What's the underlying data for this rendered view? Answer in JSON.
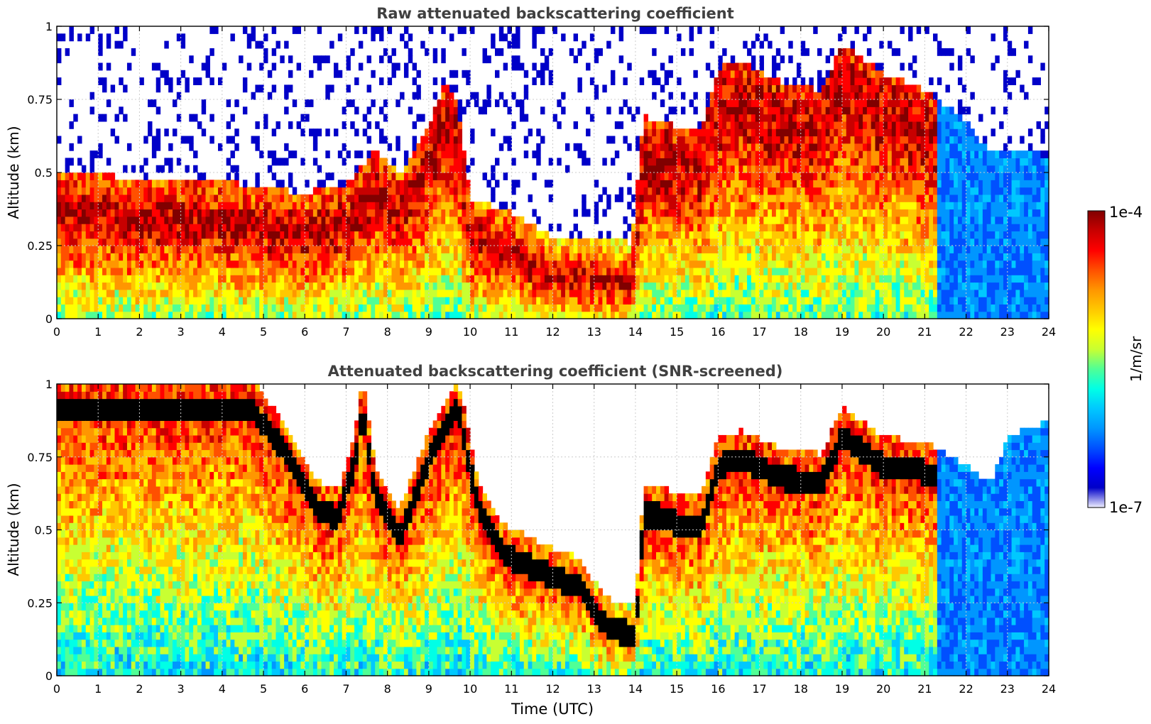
{
  "colors": {
    "jet": [
      "#f0f0ff",
      "#0000c8",
      "#0000ff",
      "#0050ff",
      "#0096ff",
      "#00c8ff",
      "#00ffe6",
      "#50ff96",
      "#c8ff32",
      "#ffff00",
      "#ffc800",
      "#ff9600",
      "#ff5000",
      "#ff0000",
      "#c80000",
      "#800000"
    ],
    "axis": "#000000",
    "grid": "#cccccc",
    "title": "#404040"
  },
  "colorbar": {
    "label": "1/m/sr",
    "max_label": "1e-4",
    "min_label": "1e-7",
    "scale": "log",
    "range": [
      1e-07,
      0.0001
    ]
  },
  "chart_data": [
    {
      "type": "heatmap",
      "title": "Raw attenuated backscattering coefficient",
      "xlabel": "",
      "ylabel": "Altitude (km)",
      "xlim": [
        0,
        24
      ],
      "ylim": [
        0,
        1
      ],
      "xticks": [
        0,
        1,
        2,
        3,
        4,
        5,
        6,
        7,
        8,
        9,
        10,
        11,
        12,
        13,
        14,
        15,
        16,
        17,
        18,
        19,
        20,
        21,
        22,
        23,
        24
      ],
      "yticks": [
        0,
        0.25,
        0.5,
        0.75,
        1
      ],
      "ytick_labels": [
        "0",
        "0.25",
        "0.5",
        "0.75",
        "1"
      ],
      "grid": true,
      "screened": false,
      "layer_top_km": [
        [
          0,
          0.45
        ],
        [
          1,
          0.44
        ],
        [
          2,
          0.41
        ],
        [
          3,
          0.42
        ],
        [
          4,
          0.41
        ],
        [
          5,
          0.39
        ],
        [
          6,
          0.37
        ],
        [
          7,
          0.4
        ],
        [
          7.7,
          0.52
        ],
        [
          8.3,
          0.43
        ],
        [
          9.0,
          0.6
        ],
        [
          9.4,
          0.75
        ],
        [
          9.7,
          0.68
        ],
        [
          10.0,
          0.35
        ],
        [
          11.0,
          0.3
        ],
        [
          12.0,
          0.22
        ],
        [
          13.0,
          0.22
        ],
        [
          13.9,
          0.2
        ],
        [
          14.2,
          0.63
        ],
        [
          15.0,
          0.6
        ],
        [
          15.6,
          0.6
        ],
        [
          16.0,
          0.8
        ],
        [
          16.6,
          0.82
        ],
        [
          17.5,
          0.75
        ],
        [
          18.5,
          0.72
        ],
        [
          19.0,
          0.88
        ],
        [
          20.0,
          0.78
        ],
        [
          21.0,
          0.72
        ],
        [
          22.0,
          0.62
        ],
        [
          22.5,
          0.52
        ],
        [
          24,
          0.5
        ]
      ]
    },
    {
      "type": "heatmap",
      "title": "Attenuated backscattering coefficient (SNR-screened)",
      "xlabel": "Time (UTC)",
      "ylabel": "Altitude (km)",
      "xlim": [
        0,
        24
      ],
      "ylim": [
        0,
        1
      ],
      "xticks": [
        0,
        1,
        2,
        3,
        4,
        5,
        6,
        7,
        8,
        9,
        10,
        11,
        12,
        13,
        14,
        15,
        16,
        17,
        18,
        19,
        20,
        21,
        22,
        23,
        24
      ],
      "yticks": [
        0,
        0.25,
        0.5,
        0.75,
        1
      ],
      "ytick_labels": [
        "0",
        "0.25",
        "0.5",
        "0.75",
        "1"
      ],
      "grid": true,
      "screened": true,
      "signal_top_km": [
        [
          0,
          1.0
        ],
        [
          4.5,
          1.0
        ],
        [
          4.8,
          0.98
        ],
        [
          5.5,
          0.85
        ],
        [
          6.3,
          0.65
        ],
        [
          6.8,
          0.62
        ],
        [
          7.2,
          0.8
        ],
        [
          7.4,
          1.0
        ],
        [
          7.7,
          0.7
        ],
        [
          8.3,
          0.55
        ],
        [
          9.0,
          0.82
        ],
        [
          9.7,
          1.0
        ],
        [
          10.2,
          0.65
        ],
        [
          10.8,
          0.5
        ],
        [
          11.5,
          0.45
        ],
        [
          12.0,
          0.42
        ],
        [
          12.7,
          0.38
        ],
        [
          13.0,
          0.3
        ],
        [
          13.4,
          0.24
        ],
        [
          14.0,
          0.22
        ],
        [
          14.2,
          0.63
        ],
        [
          14.6,
          0.63
        ],
        [
          15.0,
          0.6
        ],
        [
          15.6,
          0.6
        ],
        [
          16.0,
          0.8
        ],
        [
          16.6,
          0.82
        ],
        [
          17.5,
          0.76
        ],
        [
          18.5,
          0.74
        ],
        [
          19.0,
          0.9
        ],
        [
          20.0,
          0.8
        ],
        [
          21.0,
          0.78
        ],
        [
          22.0,
          0.7
        ],
        [
          22.6,
          0.64
        ],
        [
          23.0,
          0.8
        ],
        [
          23.9,
          0.85
        ]
      ]
    }
  ]
}
